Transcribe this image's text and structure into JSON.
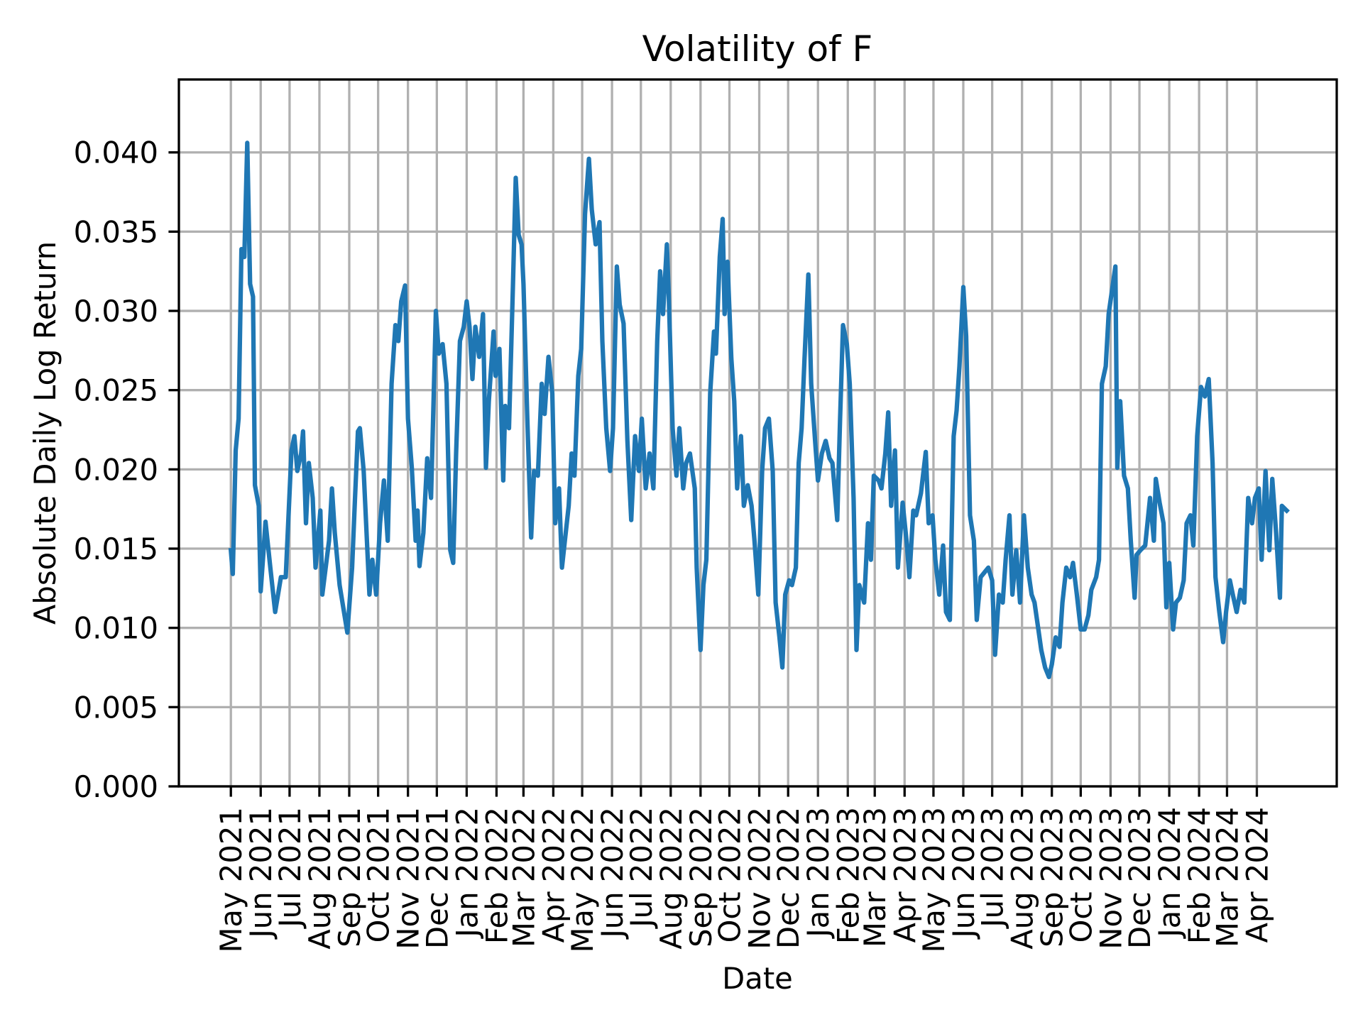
{
  "chart_data": {
    "type": "line",
    "title": "Volatility of F",
    "xlabel": "Date",
    "ylabel": "Absolute Daily Log Return",
    "xlim": [
      "2021-03-08",
      "2024-06-23"
    ],
    "ylim": [
      0,
      0.0446
    ],
    "grid": true,
    "line_color": "#1f77b4",
    "yticks": [
      0.0,
      0.005,
      0.01,
      0.015,
      0.02,
      0.025,
      0.03,
      0.035,
      0.04
    ],
    "ytick_labels": [
      "0.000",
      "0.005",
      "0.010",
      "0.015",
      "0.020",
      "0.025",
      "0.030",
      "0.035",
      "0.040"
    ],
    "xticks": [
      "2021-05-01",
      "2021-06-01",
      "2021-07-01",
      "2021-08-01",
      "2021-09-01",
      "2021-10-01",
      "2021-11-01",
      "2021-12-01",
      "2022-01-01",
      "2022-02-01",
      "2022-03-01",
      "2022-04-01",
      "2022-05-01",
      "2022-06-01",
      "2022-07-01",
      "2022-08-01",
      "2022-09-01",
      "2022-10-01",
      "2022-11-01",
      "2022-12-01",
      "2023-01-01",
      "2023-02-01",
      "2023-03-01",
      "2023-04-01",
      "2023-05-01",
      "2023-06-01",
      "2023-07-01",
      "2023-08-01",
      "2023-09-01",
      "2023-10-01",
      "2023-11-01",
      "2023-12-01",
      "2024-01-01",
      "2024-02-01",
      "2024-03-01",
      "2024-04-01"
    ],
    "xtick_labels": [
      "May 2021",
      "Jun 2021",
      "Jul 2021",
      "Aug 2021",
      "Sep 2021",
      "Oct 2021",
      "Nov 2021",
      "Dec 2021",
      "Jan 2022",
      "Feb 2022",
      "Mar 2022",
      "Apr 2022",
      "May 2022",
      "Jun 2022",
      "Jul 2022",
      "Aug 2022",
      "Sep 2022",
      "Oct 2022",
      "Nov 2022",
      "Dec 2022",
      "Jan 2023",
      "Feb 2023",
      "Mar 2023",
      "Apr 2023",
      "May 2023",
      "Jun 2023",
      "Jul 2023",
      "Aug 2023",
      "Sep 2023",
      "Oct 2023",
      "Nov 2023",
      "Dec 2023",
      "Jan 2024",
      "Feb 2024",
      "Mar 2024",
      "Apr 2024"
    ],
    "series": [
      {
        "x": [
          "2021-05-01",
          "2021-05-03",
          "2021-05-06",
          "2021-05-09",
          "2021-05-12",
          "2021-05-15",
          "2021-05-18",
          "2021-05-21",
          "2021-05-24",
          "2021-05-26",
          "2021-05-30",
          "2021-06-01",
          "2021-06-04",
          "2021-06-06",
          "2021-06-11",
          "2021-06-16",
          "2021-06-22",
          "2021-06-27",
          "2021-07-03",
          "2021-07-06",
          "2021-07-09",
          "2021-07-13",
          "2021-07-15",
          "2021-07-18",
          "2021-07-21",
          "2021-07-25",
          "2021-07-28",
          "2021-08-02",
          "2021-08-04",
          "2021-08-11",
          "2021-08-14",
          "2021-08-17",
          "2021-08-22",
          "2021-08-30",
          "2021-09-04",
          "2021-09-07",
          "2021-09-10",
          "2021-09-12",
          "2021-09-16",
          "2021-09-22",
          "2021-09-25",
          "2021-09-29",
          "2021-10-03",
          "2021-10-07",
          "2021-10-11",
          "2021-10-15",
          "2021-10-19",
          "2021-10-22",
          "2021-10-25",
          "2021-10-29",
          "2021-11-01",
          "2021-11-05",
          "2021-11-09",
          "2021-11-11",
          "2021-11-13",
          "2021-11-17",
          "2021-11-21",
          "2021-11-25",
          "2021-11-30",
          "2021-12-03",
          "2021-12-07",
          "2021-12-11",
          "2021-12-15",
          "2021-12-18",
          "2021-12-21",
          "2021-12-25",
          "2021-12-29",
          "2022-01-01",
          "2022-01-04",
          "2022-01-07",
          "2022-01-10",
          "2022-01-14",
          "2022-01-18",
          "2022-01-21",
          "2022-01-24",
          "2022-01-29",
          "2022-01-31",
          "2022-02-04",
          "2022-02-08",
          "2022-02-10",
          "2022-02-14",
          "2022-02-18",
          "2022-02-21",
          "2022-02-24",
          "2022-02-27",
          "2022-03-01",
          "2022-03-05",
          "2022-03-09",
          "2022-03-12",
          "2022-03-16",
          "2022-03-20",
          "2022-03-23",
          "2022-03-27",
          "2022-03-31",
          "2022-04-03",
          "2022-04-07",
          "2022-04-10",
          "2022-04-13",
          "2022-04-17",
          "2022-04-20",
          "2022-04-23",
          "2022-04-27",
          "2022-04-30",
          "2022-05-04",
          "2022-05-08",
          "2022-05-11",
          "2022-05-15",
          "2022-05-19",
          "2022-05-22",
          "2022-05-26",
          "2022-05-30",
          "2022-06-02",
          "2022-06-06",
          "2022-06-09",
          "2022-06-13",
          "2022-06-17",
          "2022-06-21",
          "2022-06-25",
          "2022-06-29",
          "2022-07-02",
          "2022-07-06",
          "2022-07-10",
          "2022-07-14",
          "2022-07-18",
          "2022-07-21",
          "2022-07-24",
          "2022-07-28",
          "2022-07-30",
          "2022-08-03",
          "2022-08-07",
          "2022-08-10",
          "2022-08-14",
          "2022-08-17",
          "2022-08-21",
          "2022-08-26",
          "2022-08-28",
          "2022-09-01",
          "2022-09-04",
          "2022-09-07",
          "2022-09-11",
          "2022-09-15",
          "2022-09-17",
          "2022-09-21",
          "2022-09-24",
          "2022-09-26",
          "2022-09-29",
          "2022-10-03",
          "2022-10-06",
          "2022-10-09",
          "2022-10-13",
          "2022-10-16",
          "2022-10-20",
          "2022-10-24",
          "2022-10-27",
          "2022-10-31",
          "2022-11-04",
          "2022-11-07",
          "2022-11-11",
          "2022-11-15",
          "2022-11-18",
          "2022-11-22",
          "2022-11-25",
          "2022-11-28",
          "2022-12-02",
          "2022-12-05",
          "2022-12-09",
          "2022-12-12",
          "2022-12-15",
          "2022-12-18",
          "2022-12-22",
          "2022-12-25",
          "2022-12-29",
          "2023-01-01",
          "2023-01-05",
          "2023-01-09",
          "2023-01-13",
          "2023-01-16",
          "2023-01-21",
          "2023-01-24",
          "2023-01-27",
          "2023-01-31",
          "2023-02-03",
          "2023-02-07",
          "2023-02-10",
          "2023-02-13",
          "2023-02-18",
          "2023-02-22",
          "2023-02-25",
          "2023-02-28",
          "2023-03-05",
          "2023-03-08",
          "2023-03-12",
          "2023-03-15",
          "2023-03-18",
          "2023-03-22",
          "2023-03-25",
          "2023-03-30",
          "2023-04-03",
          "2023-04-06",
          "2023-04-10",
          "2023-04-13",
          "2023-04-18",
          "2023-04-23",
          "2023-04-26",
          "2023-04-30",
          "2023-05-03",
          "2023-05-07",
          "2023-05-11",
          "2023-05-14",
          "2023-05-18",
          "2023-05-22",
          "2023-05-25",
          "2023-05-28",
          "2023-06-01",
          "2023-06-04",
          "2023-06-08",
          "2023-06-12",
          "2023-06-15",
          "2023-06-19",
          "2023-06-23",
          "2023-06-27",
          "2023-07-01",
          "2023-07-04",
          "2023-07-08",
          "2023-07-12",
          "2023-07-15",
          "2023-07-19",
          "2023-07-22",
          "2023-07-26",
          "2023-07-30",
          "2023-08-03",
          "2023-08-07",
          "2023-08-11",
          "2023-08-14",
          "2023-08-18",
          "2023-08-21",
          "2023-08-25",
          "2023-08-29",
          "2023-09-01",
          "2023-09-05",
          "2023-09-09",
          "2023-09-12",
          "2023-09-16",
          "2023-09-20",
          "2023-09-23",
          "2023-09-27",
          "2023-10-01",
          "2023-10-05",
          "2023-10-09",
          "2023-10-12",
          "2023-10-17",
          "2023-10-20",
          "2023-10-23",
          "2023-10-27",
          "2023-10-30",
          "2023-11-03",
          "2023-11-06",
          "2023-11-08",
          "2023-11-11",
          "2023-11-15",
          "2023-11-19",
          "2023-11-22",
          "2023-11-26",
          "2023-11-28",
          "2023-12-02",
          "2023-12-07",
          "2023-12-12",
          "2023-12-16",
          "2023-12-18",
          "2023-12-22",
          "2023-12-26",
          "2023-12-29",
          "2024-01-01",
          "2024-01-05",
          "2024-01-08",
          "2024-01-12",
          "2024-01-16",
          "2024-01-19",
          "2024-01-23",
          "2024-01-26",
          "2024-01-30",
          "2024-02-03",
          "2024-02-07",
          "2024-02-11",
          "2024-02-15",
          "2024-02-18",
          "2024-02-22",
          "2024-02-26",
          "2024-02-29",
          "2024-03-04",
          "2024-03-07",
          "2024-03-11",
          "2024-03-15",
          "2024-03-19",
          "2024-03-23",
          "2024-03-27",
          "2024-03-30",
          "2024-04-03",
          "2024-04-06",
          "2024-04-10",
          "2024-04-14",
          "2024-04-17",
          "2024-04-21",
          "2024-04-25",
          "2024-04-27",
          "2024-05-02"
        ],
        "y": [
          0.0149,
          0.0134,
          0.0212,
          0.0232,
          0.0339,
          0.0334,
          0.0406,
          0.0317,
          0.0309,
          0.019,
          0.0177,
          0.0123,
          0.0149,
          0.0167,
          0.0138,
          0.011,
          0.0132,
          0.0132,
          0.0212,
          0.0221,
          0.0199,
          0.021,
          0.0224,
          0.0166,
          0.0204,
          0.0182,
          0.0138,
          0.0174,
          0.0121,
          0.0155,
          0.0188,
          0.016,
          0.0127,
          0.0097,
          0.0138,
          0.0182,
          0.0224,
          0.0226,
          0.0199,
          0.0121,
          0.0143,
          0.0121,
          0.0166,
          0.0193,
          0.0155,
          0.0254,
          0.0291,
          0.0281,
          0.0306,
          0.0316,
          0.0232,
          0.0201,
          0.0155,
          0.0174,
          0.0139,
          0.016,
          0.0207,
          0.0182,
          0.03,
          0.0273,
          0.0279,
          0.0254,
          0.0149,
          0.0141,
          0.021,
          0.0281,
          0.029,
          0.0306,
          0.029,
          0.0257,
          0.029,
          0.0271,
          0.0298,
          0.0201,
          0.0243,
          0.0287,
          0.0259,
          0.0276,
          0.0193,
          0.024,
          0.0226,
          0.0315,
          0.0384,
          0.0348,
          0.0342,
          0.0317,
          0.0232,
          0.0157,
          0.0199,
          0.0196,
          0.0254,
          0.0235,
          0.0271,
          0.0248,
          0.0166,
          0.0188,
          0.0138,
          0.0155,
          0.0177,
          0.021,
          0.0196,
          0.0259,
          0.0276,
          0.0361,
          0.0396,
          0.0364,
          0.0342,
          0.0356,
          0.0281,
          0.0226,
          0.0199,
          0.0226,
          0.0328,
          0.0304,
          0.0292,
          0.0218,
          0.0168,
          0.0221,
          0.0199,
          0.0232,
          0.0188,
          0.021,
          0.0188,
          0.0281,
          0.0325,
          0.0298,
          0.0342,
          0.0309,
          0.0226,
          0.0196,
          0.0226,
          0.0188,
          0.0204,
          0.021,
          0.0188,
          0.0138,
          0.0086,
          0.0127,
          0.0143,
          0.0248,
          0.0287,
          0.0273,
          0.0334,
          0.0358,
          0.0298,
          0.0331,
          0.027,
          0.0243,
          0.0188,
          0.0221,
          0.0177,
          0.019,
          0.0177,
          0.0155,
          0.0121,
          0.0199,
          0.0226,
          0.0232,
          0.0199,
          0.0116,
          0.0094,
          0.0075,
          0.0121,
          0.013,
          0.0127,
          0.0138,
          0.0204,
          0.0226,
          0.027,
          0.0323,
          0.0254,
          0.0218,
          0.0193,
          0.021,
          0.0218,
          0.0207,
          0.0204,
          0.0168,
          0.0232,
          0.0291,
          0.0279,
          0.0254,
          0.0182,
          0.0086,
          0.0127,
          0.0116,
          0.0166,
          0.0143,
          0.0196,
          0.0193,
          0.0188,
          0.021,
          0.0236,
          0.0177,
          0.0212,
          0.0138,
          0.0179,
          0.0155,
          0.0132,
          0.0174,
          0.0171,
          0.0185,
          0.0211,
          0.0166,
          0.0171,
          0.0143,
          0.0121,
          0.0152,
          0.011,
          0.0105,
          0.0221,
          0.0237,
          0.0265,
          0.0315,
          0.0284,
          0.0171,
          0.0155,
          0.0105,
          0.0132,
          0.0135,
          0.0138,
          0.013,
          0.0083,
          0.0121,
          0.0116,
          0.0143,
          0.0171,
          0.0121,
          0.0149,
          0.0116,
          0.0171,
          0.0138,
          0.0121,
          0.0116,
          0.0099,
          0.0086,
          0.0075,
          0.0069,
          0.0077,
          0.0094,
          0.0088,
          0.0116,
          0.0138,
          0.0132,
          0.0141,
          0.0121,
          0.0099,
          0.0099,
          0.0108,
          0.0124,
          0.0132,
          0.0143,
          0.0254,
          0.0265,
          0.0298,
          0.0315,
          0.0328,
          0.0201,
          0.0243,
          0.0196,
          0.0188,
          0.0155,
          0.0119,
          0.0146,
          0.0149,
          0.0152,
          0.0182,
          0.0155,
          0.0194,
          0.0179,
          0.0166,
          0.0113,
          0.0141,
          0.0099,
          0.0116,
          0.0119,
          0.013,
          0.0166,
          0.0171,
          0.0152,
          0.0221,
          0.0252,
          0.0246,
          0.0257,
          0.0204,
          0.0132,
          0.011,
          0.0091,
          0.011,
          0.013,
          0.0121,
          0.011,
          0.0124,
          0.0116,
          0.0182,
          0.0166,
          0.0182,
          0.0188,
          0.0143,
          0.0199,
          0.0149,
          0.0194,
          0.016,
          0.0119,
          0.0177,
          0.0174
        ]
      }
    ]
  }
}
